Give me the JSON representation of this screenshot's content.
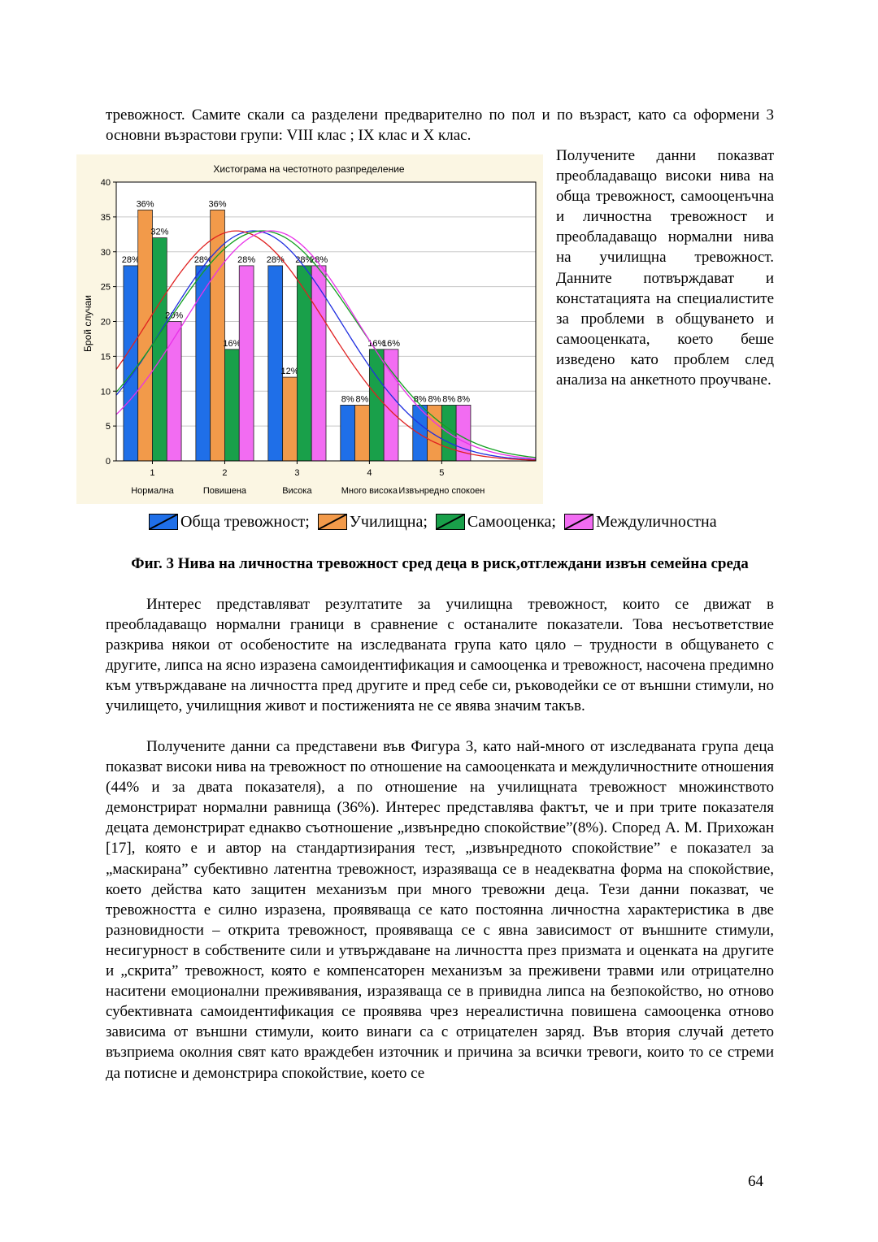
{
  "paragraphs": {
    "intro": "тревожност. Самите скали са разделени предварително по пол и по  възраст, като са оформени 3 основни възрастови групи: VIII клас ; IX клас и X клас.",
    "right": "Получените данни показват преобладаващо високи нива на обща тревожност, самооценъчна и личностна тревожност и преобладаващо нормални нива на училищна тревожност. Данните потвърждават и констатацията на специалистите за проблеми в общуването и самооценката, което беше изведено като проблем след анализа на анкетното проучване.",
    "p1": "Интерес представляват резултатите за училищна тревожност, които се движат в преобладаващо нормални граници в сравнение с останалите показатели. Това несъответствие разкрива някои от особеностите на изследваната група като цяло – трудности в общуването с другите, липса на ясно изразена самоидентификация и самооценка и тревожност, насочена предимно към утвърждаване на личността пред другите и пред себе си, ръководейки се от външни стимули, но училището, училищния живот и постиженията не се явява значим такъв.",
    "p2": "Получените данни са представени във Фигура 3, като най-много от изследваната група деца показват високи нива на тревожност по отношение на самооценката и междуличностните отношения (44% и за двата показателя), а по отношение на училищната тревожност множинството демонстрират нормални равнища (36%). Интерес представлява фактът, че и при трите показателя децата демонстрират еднакво съотношение „извънредно спокойствие”(8%). Според А. М. Прихожан [17], която е и автор на стандартизирания тест, „извънредното спокойствие” е показател за „маскирана” субективно латентна тревожност, изразяваща се в неадекватна форма на спокойствие, което действа като защитен механизъм при много тревожни деца. Тези данни показват, че тревожността е силно изразена, проявяваща се като постоянна личностна характеристика в две разновидности – открита тревожност, проявяваща се с явна зависимост от външните стимули, несигурност в собствените сили и утвърждаване на личността през призмата и оценката на другите и „скрита” тревожност, която е компенсаторен механизъм за преживени травми или отрицателно наситени емоционални преживявания, изразяваща се в привидна липса на безпокойство, но отново субективната самоидентификация се проявява чрез нереалистична повишена самооценка отново зависима от външни стимули, които винаги са с отрицателен заряд. Във втория случай детето възприема околния свят като враждебен източник и причина за всички тревоги, които то се стреми да потисне и демонстрира спокойствие, което се"
  },
  "figure": {
    "caption": "Фиг. 3 Нива на личностна тревожност сред деца в риск,отглеждани извън семейна среда"
  },
  "legend": [
    {
      "label": "Обща тревожност;",
      "color": "#1f6fe8"
    },
    {
      "label": "Училищна;",
      "color": "#f29a4a"
    },
    {
      "label": "Самооценка;",
      "color": "#19a04a"
    },
    {
      "label": "Междуличностна",
      "color": "#f26cf2"
    }
  ],
  "page_number": "64",
  "chart_data": {
    "type": "bar",
    "title": "Хистограма на честотното разпределение",
    "ylabel": "Брой случаи",
    "xlabel": "",
    "ylim": [
      0,
      40
    ],
    "yticks": [
      0,
      5,
      10,
      15,
      20,
      25,
      30,
      35,
      40
    ],
    "x_ticks": [
      "1",
      "2",
      "3",
      "4",
      "5"
    ],
    "categories": [
      "Нормална",
      "Повишена",
      "Висока",
      "Много висока",
      "Извънредно спокоен"
    ],
    "grid": true,
    "series": [
      {
        "name": "Обща тревожност",
        "color": "#1f6fe8",
        "curve": "#1f2fe0",
        "values": [
          28,
          28,
          28,
          8,
          8
        ],
        "labels": [
          "28%",
          "28%",
          "28%",
          "8%",
          "8%"
        ]
      },
      {
        "name": "Училищна",
        "color": "#f29a4a",
        "curve": "#e02020",
        "values": [
          36,
          36,
          12,
          8,
          8
        ],
        "labels": [
          "36%",
          "36%",
          "12%",
          "8%",
          "8%"
        ]
      },
      {
        "name": "Самооценка",
        "color": "#19a04a",
        "curve": "#12a020",
        "values": [
          32,
          16,
          28,
          16,
          8
        ],
        "labels": [
          "32%",
          "16%",
          "28%",
          "16%",
          "8%"
        ]
      },
      {
        "name": "Междуличностна",
        "color": "#f26cf2",
        "curve": "#e830e8",
        "values": [
          20,
          28,
          28,
          16,
          8
        ],
        "labels": [
          "20%",
          "28%",
          "28%",
          "16%",
          "8%"
        ]
      }
    ]
  }
}
